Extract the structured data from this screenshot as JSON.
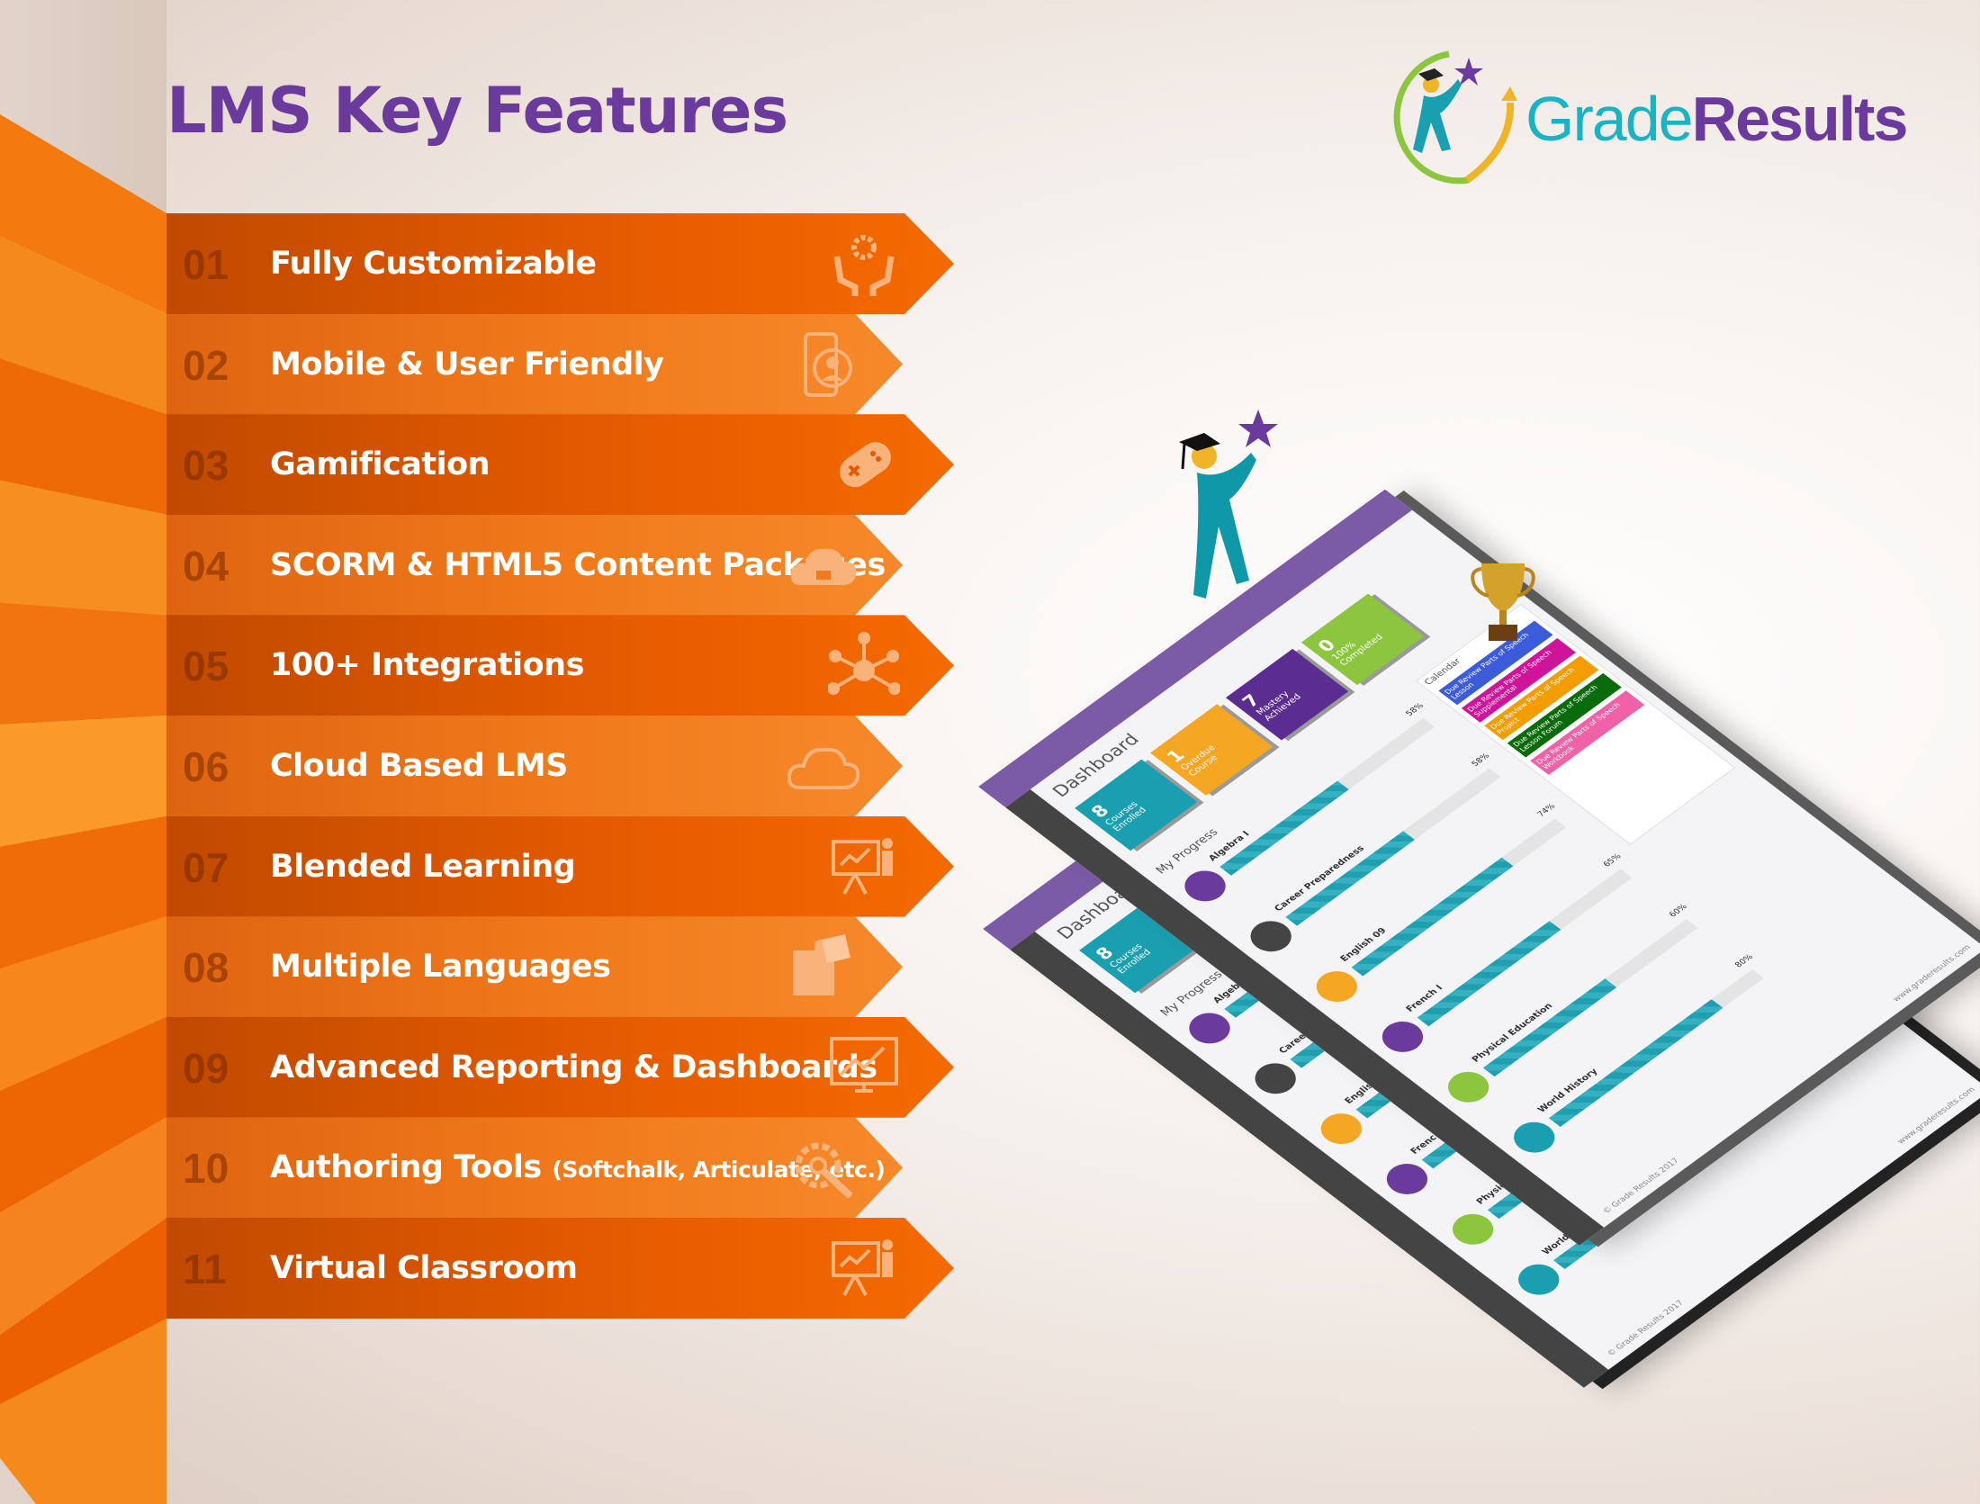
{
  "title": "LMS Key Features",
  "logo": {
    "part1": "Grade",
    "part2": "Results"
  },
  "colors": {
    "title": "#6a3a9c",
    "orange_dark": "#e45a00",
    "orange_light": "#f07a1c",
    "teal": "#19b3c4",
    "purple": "#6a3a9c",
    "green": "#8cc63f"
  },
  "features": [
    {
      "num": "01",
      "label": "Fully Customizable",
      "icon": "hands-gear-icon"
    },
    {
      "num": "02",
      "label": "Mobile & User Friendly",
      "icon": "mobile-user-icon"
    },
    {
      "num": "03",
      "label": "Gamification",
      "icon": "gamepad-icon"
    },
    {
      "num": "04",
      "label": "SCORM & HTML5 Content Packages",
      "icon": "cloud-package-icon"
    },
    {
      "num": "05",
      "label": "100+ Integrations",
      "icon": "network-icon"
    },
    {
      "num": "06",
      "label": "Cloud Based LMS",
      "icon": "cloud-icon"
    },
    {
      "num": "07",
      "label": "Blended Learning",
      "icon": "presentation-icon"
    },
    {
      "num": "08",
      "label": "Multiple Languages",
      "icon": "puzzle-icon"
    },
    {
      "num": "09",
      "label": "Advanced Reporting & Dashboards",
      "icon": "chart-monitor-icon"
    },
    {
      "num": "10",
      "label": "Authoring Tools",
      "note": "(Softchalk, Articulate, etc.)",
      "icon": "gear-wrench-icon"
    },
    {
      "num": "11",
      "label": "Virtual Classroom",
      "icon": "presentation-icon"
    }
  ],
  "dashboard": {
    "title": "Dashboard",
    "tiles": [
      {
        "value": "8",
        "label": "Courses Enrolled",
        "color": "#1a9fb0"
      },
      {
        "value": "1",
        "label": "Overdue Course",
        "color": "#f5a623"
      },
      {
        "value": "7",
        "label": "Mastery Achieved",
        "color": "#5c2d91"
      },
      {
        "value": "0",
        "label": "100% Completed",
        "color": "#8cc63f"
      }
    ],
    "progress_title": "My Progress",
    "courses": [
      {
        "name": "Algebra I",
        "pct": "58%",
        "value": 58,
        "color": "#6a3a9c"
      },
      {
        "name": "Career Preparedness",
        "pct": "58%",
        "value": 58,
        "color": "#444444"
      },
      {
        "name": "English 09",
        "pct": "74%",
        "value": 74,
        "color": "#f5a623"
      },
      {
        "name": "French I",
        "pct": "65%",
        "value": 65,
        "color": "#6a3a9c"
      },
      {
        "name": "Physical Education",
        "pct": "60%",
        "value": 60,
        "color": "#8cc63f"
      },
      {
        "name": "World History",
        "pct": "80%",
        "value": 80,
        "color": "#1a9fb0"
      }
    ],
    "calendar_title": "Calendar",
    "events": [
      {
        "label": "Due Review Parts of Speech Lesson",
        "color": "#3b5bdb"
      },
      {
        "label": "Due Review Parts of Speech Supplemental",
        "color": "#d0139b"
      },
      {
        "label": "Due Review Parts of Speech Project",
        "color": "#f59c00"
      },
      {
        "label": "Due Review Parts of Speech Lesson Forum",
        "color": "#0a6b0a"
      },
      {
        "label": "Due Review Parts of Speech Workbook",
        "color": "#f062a8"
      }
    ],
    "footer": "© Grade Results 2017",
    "url": "www.graderesults.com"
  }
}
